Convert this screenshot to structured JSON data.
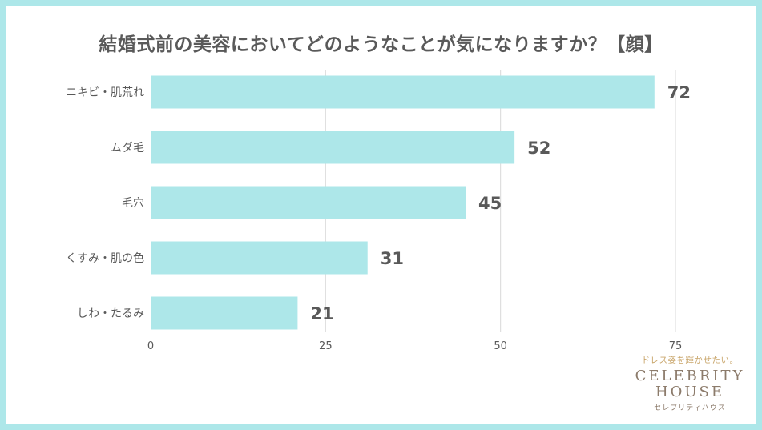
{
  "chart_data": {
    "type": "bar",
    "orientation": "horizontal",
    "title": "結婚式前の美容においてどのようなことが気になりますか？【顔】",
    "categories": [
      "ニキビ・肌荒れ",
      "ムダ毛",
      "毛穴",
      "くすみ・肌の色",
      "しわ・たるみ"
    ],
    "values": [
      72,
      52,
      45,
      31,
      21
    ],
    "xlim": [
      0,
      75
    ],
    "xticks": [
      0,
      25,
      50,
      75
    ],
    "grid": true,
    "legend": "none",
    "bar_color": "#ade7e9"
  },
  "logo": {
    "tagline": "ドレス姿を輝かせたい。",
    "line1": "CELEBRITY",
    "line2": "HOUSE",
    "kana": "セレブリティハウス"
  },
  "colors": {
    "border": "#ade7e9",
    "bar": "#ade7e9",
    "text": "#595959",
    "grid": "#d9d9d9"
  }
}
